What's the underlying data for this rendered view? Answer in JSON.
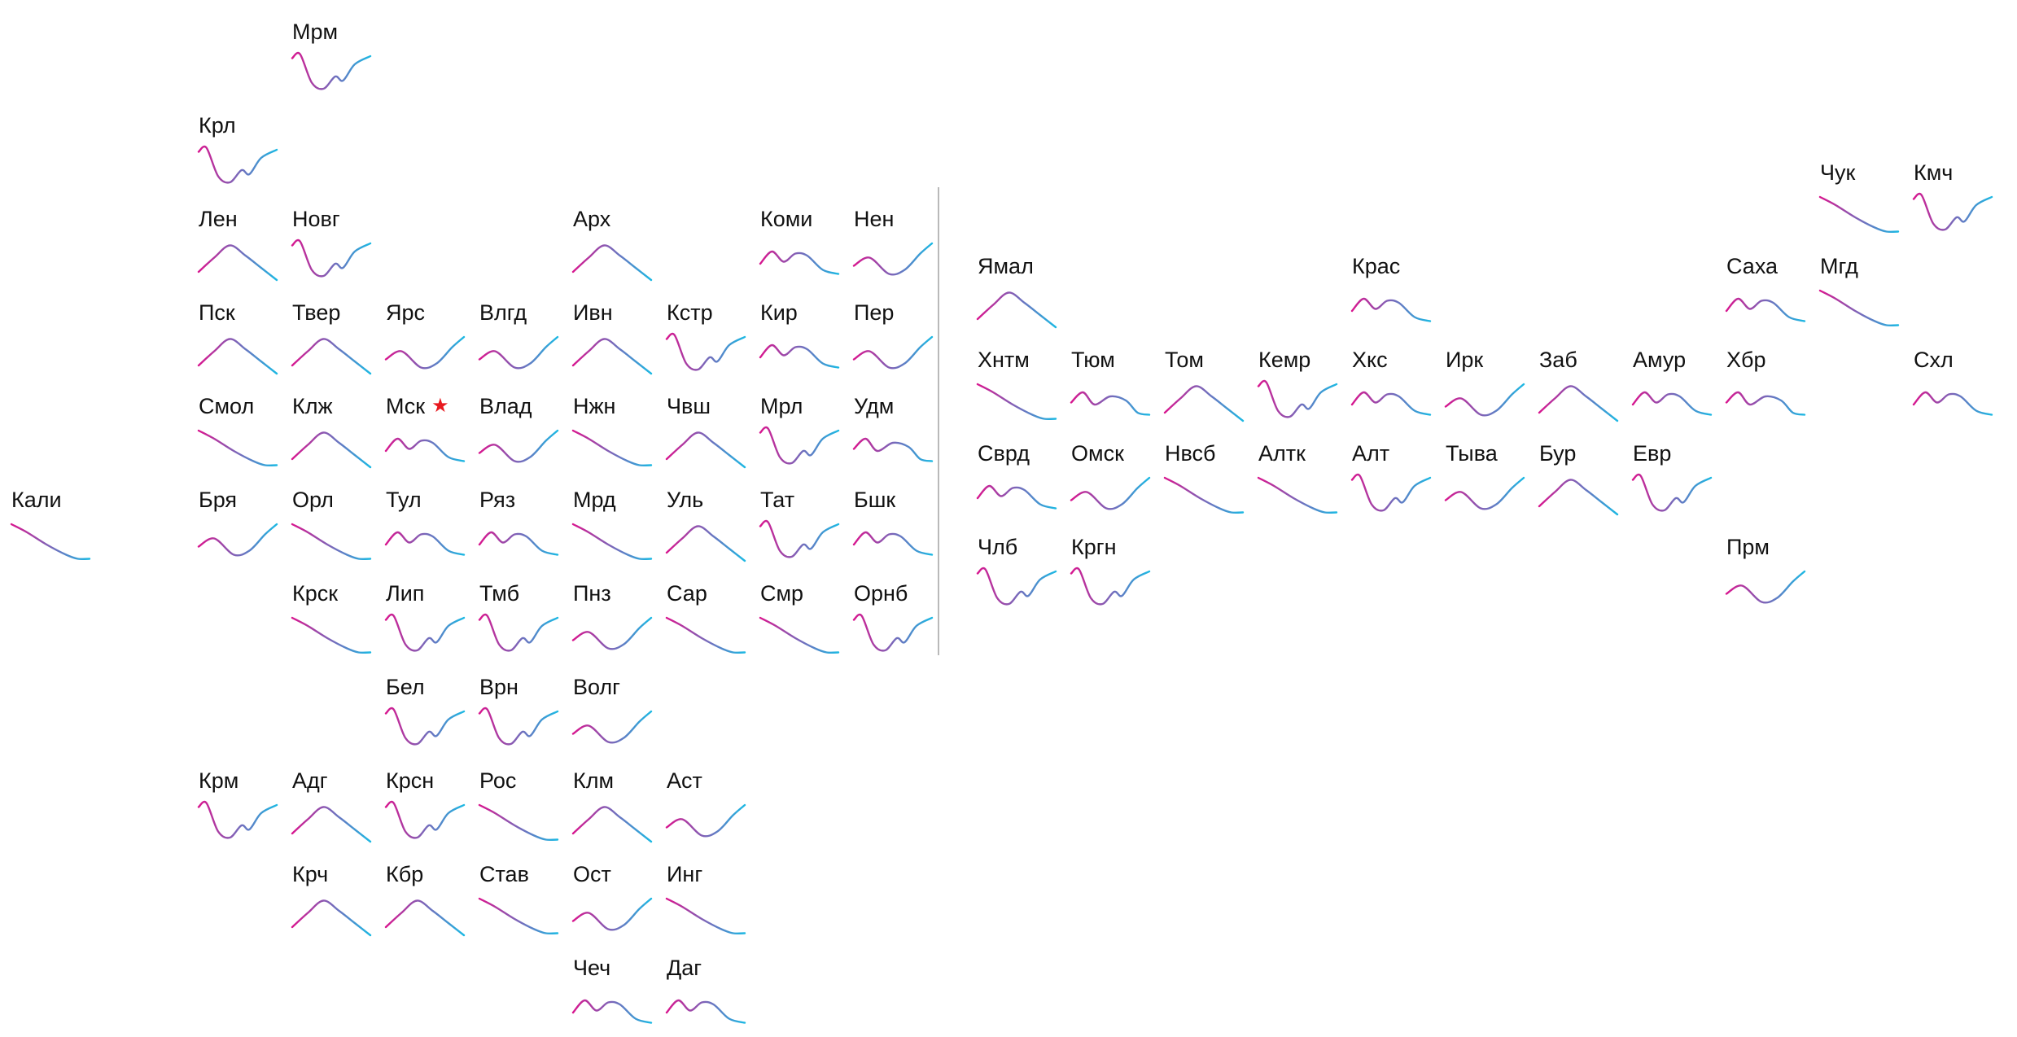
{
  "colors": {
    "start": "#d8168f",
    "end": "#1cb8e3",
    "star": "#e8191f",
    "divider": "#b9b9b9",
    "text": "#111111"
  },
  "marker_icon": "star-icon",
  "shapes": {
    "hump": [
      [
        0,
        0.8
      ],
      [
        0.2,
        0.45
      ],
      [
        0.4,
        0.15
      ],
      [
        0.6,
        0.4
      ],
      [
        0.8,
        0.7
      ],
      [
        1,
        1.0
      ]
    ],
    "peak_early": [
      [
        0,
        0.6
      ],
      [
        0.18,
        0.25
      ],
      [
        0.35,
        0.45
      ],
      [
        0.55,
        0.65
      ],
      [
        0.75,
        0.9
      ],
      [
        1,
        1.0
      ]
    ],
    "decline": [
      [
        0,
        0.1
      ],
      [
        0.2,
        0.3
      ],
      [
        0.45,
        0.6
      ],
      [
        0.7,
        0.85
      ],
      [
        0.85,
        0.95
      ],
      [
        1,
        0.95
      ]
    ],
    "valley_rise": [
      [
        0,
        0.65
      ],
      [
        0.2,
        0.45
      ],
      [
        0.45,
        0.85
      ],
      [
        0.65,
        0.75
      ],
      [
        0.85,
        0.35
      ],
      [
        1,
        0.1
      ]
    ],
    "double_peak": [
      [
        0,
        0.6
      ],
      [
        0.15,
        0.3
      ],
      [
        0.3,
        0.55
      ],
      [
        0.45,
        0.35
      ],
      [
        0.6,
        0.4
      ],
      [
        0.8,
        0.75
      ],
      [
        1,
        0.85
      ]
    ],
    "spike_wiggle": [
      [
        0,
        0.15
      ],
      [
        0.1,
        0.05
      ],
      [
        0.25,
        0.75
      ],
      [
        0.4,
        0.9
      ],
      [
        0.55,
        0.6
      ],
      [
        0.65,
        0.7
      ],
      [
        0.8,
        0.3
      ],
      [
        1,
        0.1
      ]
    ],
    "wave_two": [
      [
        0,
        0.55
      ],
      [
        0.15,
        0.3
      ],
      [
        0.3,
        0.6
      ],
      [
        0.5,
        0.4
      ],
      [
        0.7,
        0.5
      ],
      [
        0.85,
        0.8
      ],
      [
        1,
        0.85
      ]
    ]
  },
  "regions": [
    {
      "id": "mrm",
      "label": "Мрм",
      "col": 3,
      "row": 0,
      "shape": "spike_wiggle"
    },
    {
      "id": "krl",
      "label": "Крл",
      "col": 2,
      "row": 1,
      "shape": "spike_wiggle"
    },
    {
      "id": "len",
      "label": "Лен",
      "col": 2,
      "row": 2,
      "shape": "hump"
    },
    {
      "id": "novg",
      "label": "Новг",
      "col": 3,
      "row": 2,
      "shape": "spike_wiggle"
    },
    {
      "id": "arh",
      "label": "Арх",
      "col": 6,
      "row": 2,
      "shape": "hump"
    },
    {
      "id": "komi",
      "label": "Коми",
      "col": 8,
      "row": 2,
      "shape": "double_peak"
    },
    {
      "id": "nen",
      "label": "Нен",
      "col": 9,
      "row": 2,
      "shape": "valley_rise"
    },
    {
      "id": "psk",
      "label": "Пск",
      "col": 2,
      "row": 3,
      "shape": "hump"
    },
    {
      "id": "tver",
      "label": "Твер",
      "col": 3,
      "row": 3,
      "shape": "hump"
    },
    {
      "id": "yars",
      "label": "Ярс",
      "col": 4,
      "row": 3,
      "shape": "valley_rise"
    },
    {
      "id": "vlgd",
      "label": "Влгд",
      "col": 5,
      "row": 3,
      "shape": "valley_rise"
    },
    {
      "id": "ivn",
      "label": "Ивн",
      "col": 6,
      "row": 3,
      "shape": "hump"
    },
    {
      "id": "kstr",
      "label": "Кстр",
      "col": 7,
      "row": 3,
      "shape": "spike_wiggle"
    },
    {
      "id": "kir",
      "label": "Кир",
      "col": 8,
      "row": 3,
      "shape": "double_peak"
    },
    {
      "id": "per",
      "label": "Пер",
      "col": 9,
      "row": 3,
      "shape": "valley_rise"
    },
    {
      "id": "smol",
      "label": "Смол",
      "col": 2,
      "row": 4,
      "shape": "decline"
    },
    {
      "id": "klzh",
      "label": "Клж",
      "col": 3,
      "row": 4,
      "shape": "hump"
    },
    {
      "id": "msk",
      "label": "Мск",
      "col": 4,
      "row": 4,
      "shape": "double_peak",
      "star": "★"
    },
    {
      "id": "vlad",
      "label": "Влад",
      "col": 5,
      "row": 4,
      "shape": "valley_rise"
    },
    {
      "id": "nzhn",
      "label": "Нжн",
      "col": 6,
      "row": 4,
      "shape": "decline"
    },
    {
      "id": "chvsh",
      "label": "Чвш",
      "col": 7,
      "row": 4,
      "shape": "hump"
    },
    {
      "id": "mrl",
      "label": "Мрл",
      "col": 8,
      "row": 4,
      "shape": "spike_wiggle"
    },
    {
      "id": "udm",
      "label": "Удм",
      "col": 9,
      "row": 4,
      "shape": "wave_two"
    },
    {
      "id": "kali",
      "label": "Кали",
      "col": 0,
      "row": 5,
      "shape": "decline"
    },
    {
      "id": "brya",
      "label": "Бря",
      "col": 2,
      "row": 5,
      "shape": "valley_rise"
    },
    {
      "id": "orl",
      "label": "Орл",
      "col": 3,
      "row": 5,
      "shape": "decline"
    },
    {
      "id": "tul",
      "label": "Тул",
      "col": 4,
      "row": 5,
      "shape": "double_peak"
    },
    {
      "id": "ryaz",
      "label": "Ряз",
      "col": 5,
      "row": 5,
      "shape": "double_peak"
    },
    {
      "id": "mrd",
      "label": "Мрд",
      "col": 6,
      "row": 5,
      "shape": "decline"
    },
    {
      "id": "ul",
      "label": "Уль",
      "col": 7,
      "row": 5,
      "shape": "hump"
    },
    {
      "id": "tat",
      "label": "Тат",
      "col": 8,
      "row": 5,
      "shape": "spike_wiggle"
    },
    {
      "id": "bshk",
      "label": "Бшк",
      "col": 9,
      "row": 5,
      "shape": "double_peak"
    },
    {
      "id": "krsk",
      "label": "Крск",
      "col": 3,
      "row": 6,
      "shape": "decline"
    },
    {
      "id": "lip",
      "label": "Лип",
      "col": 4,
      "row": 6,
      "shape": "spike_wiggle"
    },
    {
      "id": "tmb",
      "label": "Тмб",
      "col": 5,
      "row": 6,
      "shape": "spike_wiggle"
    },
    {
      "id": "pnz",
      "label": "Пнз",
      "col": 6,
      "row": 6,
      "shape": "valley_rise"
    },
    {
      "id": "sar",
      "label": "Сар",
      "col": 7,
      "row": 6,
      "shape": "decline"
    },
    {
      "id": "smr",
      "label": "Смр",
      "col": 8,
      "row": 6,
      "shape": "decline"
    },
    {
      "id": "ornb",
      "label": "Орнб",
      "col": 9,
      "row": 6,
      "shape": "spike_wiggle"
    },
    {
      "id": "bel",
      "label": "Бел",
      "col": 4,
      "row": 7,
      "shape": "spike_wiggle"
    },
    {
      "id": "vrn",
      "label": "Врн",
      "col": 5,
      "row": 7,
      "shape": "spike_wiggle"
    },
    {
      "id": "volg",
      "label": "Волг",
      "col": 6,
      "row": 7,
      "shape": "valley_rise"
    },
    {
      "id": "krm",
      "label": "Крм",
      "col": 2,
      "row": 8,
      "shape": "spike_wiggle"
    },
    {
      "id": "adg",
      "label": "Адг",
      "col": 3,
      "row": 8,
      "shape": "hump"
    },
    {
      "id": "krsn",
      "label": "Крсн",
      "col": 4,
      "row": 8,
      "shape": "spike_wiggle"
    },
    {
      "id": "ros",
      "label": "Рос",
      "col": 5,
      "row": 8,
      "shape": "decline"
    },
    {
      "id": "klm",
      "label": "Клм",
      "col": 6,
      "row": 8,
      "shape": "hump"
    },
    {
      "id": "ast",
      "label": "Аст",
      "col": 7,
      "row": 8,
      "shape": "valley_rise"
    },
    {
      "id": "krch",
      "label": "Крч",
      "col": 3,
      "row": 9,
      "shape": "hump"
    },
    {
      "id": "kbr",
      "label": "Кбр",
      "col": 4,
      "row": 9,
      "shape": "hump"
    },
    {
      "id": "stav",
      "label": "Став",
      "col": 5,
      "row": 9,
      "shape": "decline"
    },
    {
      "id": "ost",
      "label": "Ост",
      "col": 6,
      "row": 9,
      "shape": "valley_rise"
    },
    {
      "id": "ing",
      "label": "Инг",
      "col": 7,
      "row": 9,
      "shape": "decline"
    },
    {
      "id": "chech",
      "label": "Чеч",
      "col": 6,
      "row": 10,
      "shape": "double_peak"
    },
    {
      "id": "dag",
      "label": "Даг",
      "col": 7,
      "row": 10,
      "shape": "double_peak"
    },
    {
      "id": "chuk",
      "label": "Чук",
      "col": 20,
      "row": 1.5,
      "shape": "decline"
    },
    {
      "id": "kmch",
      "label": "Кмч",
      "col": 21,
      "row": 1.5,
      "shape": "spike_wiggle"
    },
    {
      "id": "yamal",
      "label": "Ямал",
      "col": 11,
      "row": 2.5,
      "shape": "hump"
    },
    {
      "id": "kras",
      "label": "Крас",
      "col": 15,
      "row": 2.5,
      "shape": "double_peak"
    },
    {
      "id": "saha",
      "label": "Саха",
      "col": 19,
      "row": 2.5,
      "shape": "double_peak"
    },
    {
      "id": "mgd",
      "label": "Мгд",
      "col": 20,
      "row": 2.5,
      "shape": "decline"
    },
    {
      "id": "hntm",
      "label": "Хнтм",
      "col": 11,
      "row": 3.5,
      "shape": "decline"
    },
    {
      "id": "tyum",
      "label": "Тюм",
      "col": 12,
      "row": 3.5,
      "shape": "wave_two"
    },
    {
      "id": "tom",
      "label": "Том",
      "col": 13,
      "row": 3.5,
      "shape": "hump"
    },
    {
      "id": "kemr",
      "label": "Кемр",
      "col": 14,
      "row": 3.5,
      "shape": "spike_wiggle"
    },
    {
      "id": "hks",
      "label": "Хкс",
      "col": 15,
      "row": 3.5,
      "shape": "double_peak"
    },
    {
      "id": "irk",
      "label": "Ирк",
      "col": 16,
      "row": 3.5,
      "shape": "valley_rise"
    },
    {
      "id": "zab",
      "label": "Заб",
      "col": 17,
      "row": 3.5,
      "shape": "hump"
    },
    {
      "id": "amur",
      "label": "Амур",
      "col": 18,
      "row": 3.5,
      "shape": "double_peak"
    },
    {
      "id": "hbr",
      "label": "Хбр",
      "col": 19,
      "row": 3.5,
      "shape": "wave_two"
    },
    {
      "id": "shl",
      "label": "Схл",
      "col": 21,
      "row": 3.5,
      "shape": "double_peak"
    },
    {
      "id": "svrd",
      "label": "Сврд",
      "col": 11,
      "row": 4.5,
      "shape": "double_peak"
    },
    {
      "id": "omsk",
      "label": "Омск",
      "col": 12,
      "row": 4.5,
      "shape": "valley_rise"
    },
    {
      "id": "nvsb",
      "label": "Нвсб",
      "col": 13,
      "row": 4.5,
      "shape": "decline"
    },
    {
      "id": "altk",
      "label": "Алтк",
      "col": 14,
      "row": 4.5,
      "shape": "decline"
    },
    {
      "id": "alt",
      "label": "Алт",
      "col": 15,
      "row": 4.5,
      "shape": "spike_wiggle"
    },
    {
      "id": "tyva",
      "label": "Тыва",
      "col": 16,
      "row": 4.5,
      "shape": "valley_rise"
    },
    {
      "id": "bur",
      "label": "Бур",
      "col": 17,
      "row": 4.5,
      "shape": "hump"
    },
    {
      "id": "evr",
      "label": "Евр",
      "col": 18,
      "row": 4.5,
      "shape": "spike_wiggle"
    },
    {
      "id": "chlb",
      "label": "Члб",
      "col": 11,
      "row": 5.5,
      "shape": "spike_wiggle"
    },
    {
      "id": "krgn",
      "label": "Кргн",
      "col": 12,
      "row": 5.5,
      "shape": "spike_wiggle"
    },
    {
      "id": "prm",
      "label": "Прм",
      "col": 19,
      "row": 5.5,
      "shape": "valley_rise"
    }
  ]
}
